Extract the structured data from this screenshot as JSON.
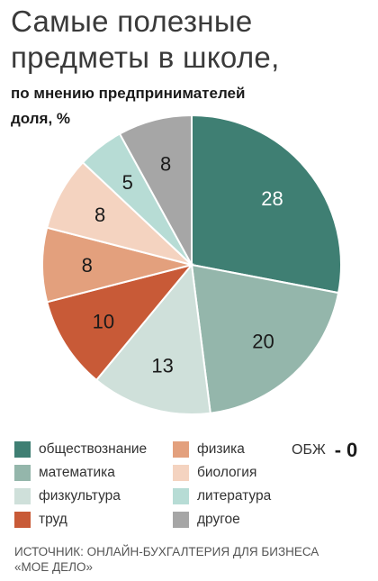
{
  "title_line1": "Самые полезные",
  "title_line2": "предметы в школе,",
  "subtitle_line1": "по мнению предпринимателей",
  "subtitle_line2": "доля, %",
  "chart_data": {
    "type": "pie",
    "slices": [
      {
        "label": "обществознание",
        "value": 28,
        "color": "#3f7f73"
      },
      {
        "label": "математика",
        "value": 20,
        "color": "#94b6ab"
      },
      {
        "label": "физкультура",
        "value": 13,
        "color": "#cfe0da"
      },
      {
        "label": "труд",
        "value": 10,
        "color": "#c85a37"
      },
      {
        "label": "физика",
        "value": 8,
        "color": "#e3a07d"
      },
      {
        "label": "биология",
        "value": 8,
        "color": "#f4d3c0"
      },
      {
        "label": "литература",
        "value": 5,
        "color": "#b7dcd5"
      },
      {
        "label": "другое",
        "value": 8,
        "color": "#a6a6a6"
      }
    ],
    "legend_placement": "bottom",
    "extra_note": {
      "label": "ОБЖ",
      "dash": "-",
      "value": "0"
    }
  },
  "source_line1": "ИСТОЧНИК: ОНЛАЙН-БУХГАЛТЕРИЯ ДЛЯ БИЗНЕСА",
  "source_line2": "«МОЕ ДЕЛО»"
}
